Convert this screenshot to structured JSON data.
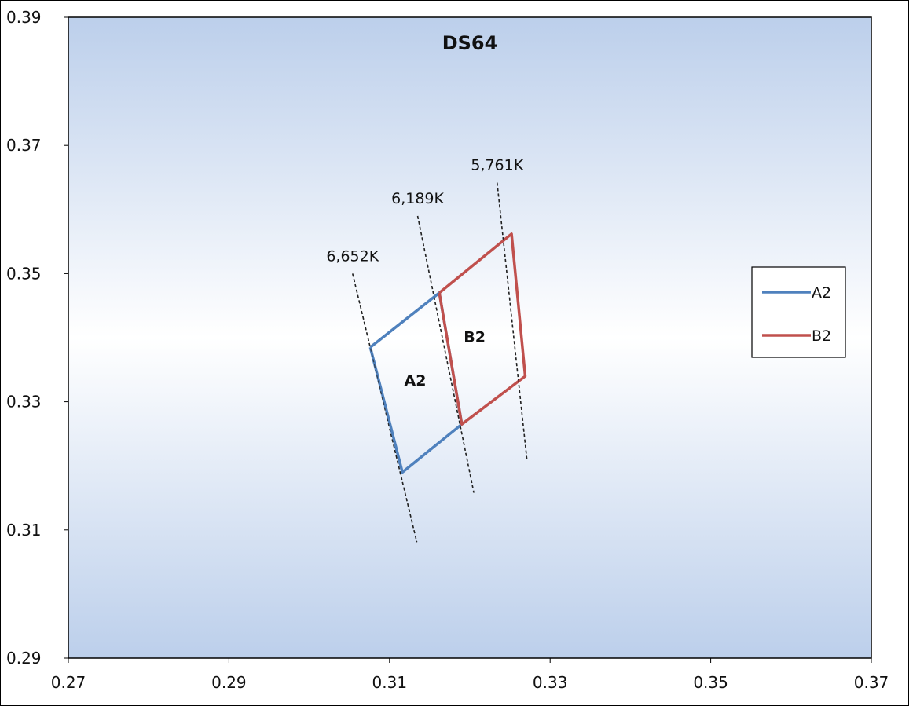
{
  "chart_data": {
    "type": "line",
    "title": "DS64",
    "xlabel": "",
    "ylabel": "",
    "xlim": [
      0.27,
      0.37
    ],
    "ylim": [
      0.29,
      0.39
    ],
    "x_ticks": [
      "0.27",
      "0.29",
      "0.31",
      "0.33",
      "0.35",
      "0.37"
    ],
    "y_ticks": [
      "0.29",
      "0.31",
      "0.33",
      "0.35",
      "0.37",
      "0.39"
    ],
    "x_tick_values": [
      0.27,
      0.29,
      0.31,
      0.33,
      0.35,
      0.37
    ],
    "y_tick_values": [
      0.29,
      0.31,
      0.33,
      0.35,
      0.37,
      0.39
    ],
    "grid": false,
    "legend_position": "right",
    "series": [
      {
        "name": "A2",
        "color": "#4f81bd",
        "points": [
          {
            "x": 0.3076,
            "y": 0.3385
          },
          {
            "x": 0.3162,
            "y": 0.347
          },
          {
            "x": 0.319,
            "y": 0.3265
          },
          {
            "x": 0.3116,
            "y": 0.319
          },
          {
            "x": 0.3076,
            "y": 0.3385
          }
        ]
      },
      {
        "name": "B2",
        "color": "#c0504d",
        "points": [
          {
            "x": 0.3162,
            "y": 0.347
          },
          {
            "x": 0.3252,
            "y": 0.3562
          },
          {
            "x": 0.3269,
            "y": 0.334
          },
          {
            "x": 0.319,
            "y": 0.3265
          },
          {
            "x": 0.3162,
            "y": 0.347
          }
        ]
      }
    ],
    "cct_lines": [
      {
        "label": "6,652K",
        "from": {
          "x": 0.3054,
          "y": 0.35
        },
        "to": {
          "x": 0.3134,
          "y": 0.3081
        }
      },
      {
        "label": "6,189K",
        "from": {
          "x": 0.3135,
          "y": 0.359
        },
        "to": {
          "x": 0.3205,
          "y": 0.3158
        }
      },
      {
        "label": "5,761K",
        "from": {
          "x": 0.3234,
          "y": 0.3642
        },
        "to": {
          "x": 0.3271,
          "y": 0.3211
        }
      }
    ],
    "region_labels": [
      {
        "text": "A2",
        "x": 0.3132,
        "y": 0.3325
      },
      {
        "text": "B2",
        "x": 0.3206,
        "y": 0.3393
      }
    ]
  }
}
